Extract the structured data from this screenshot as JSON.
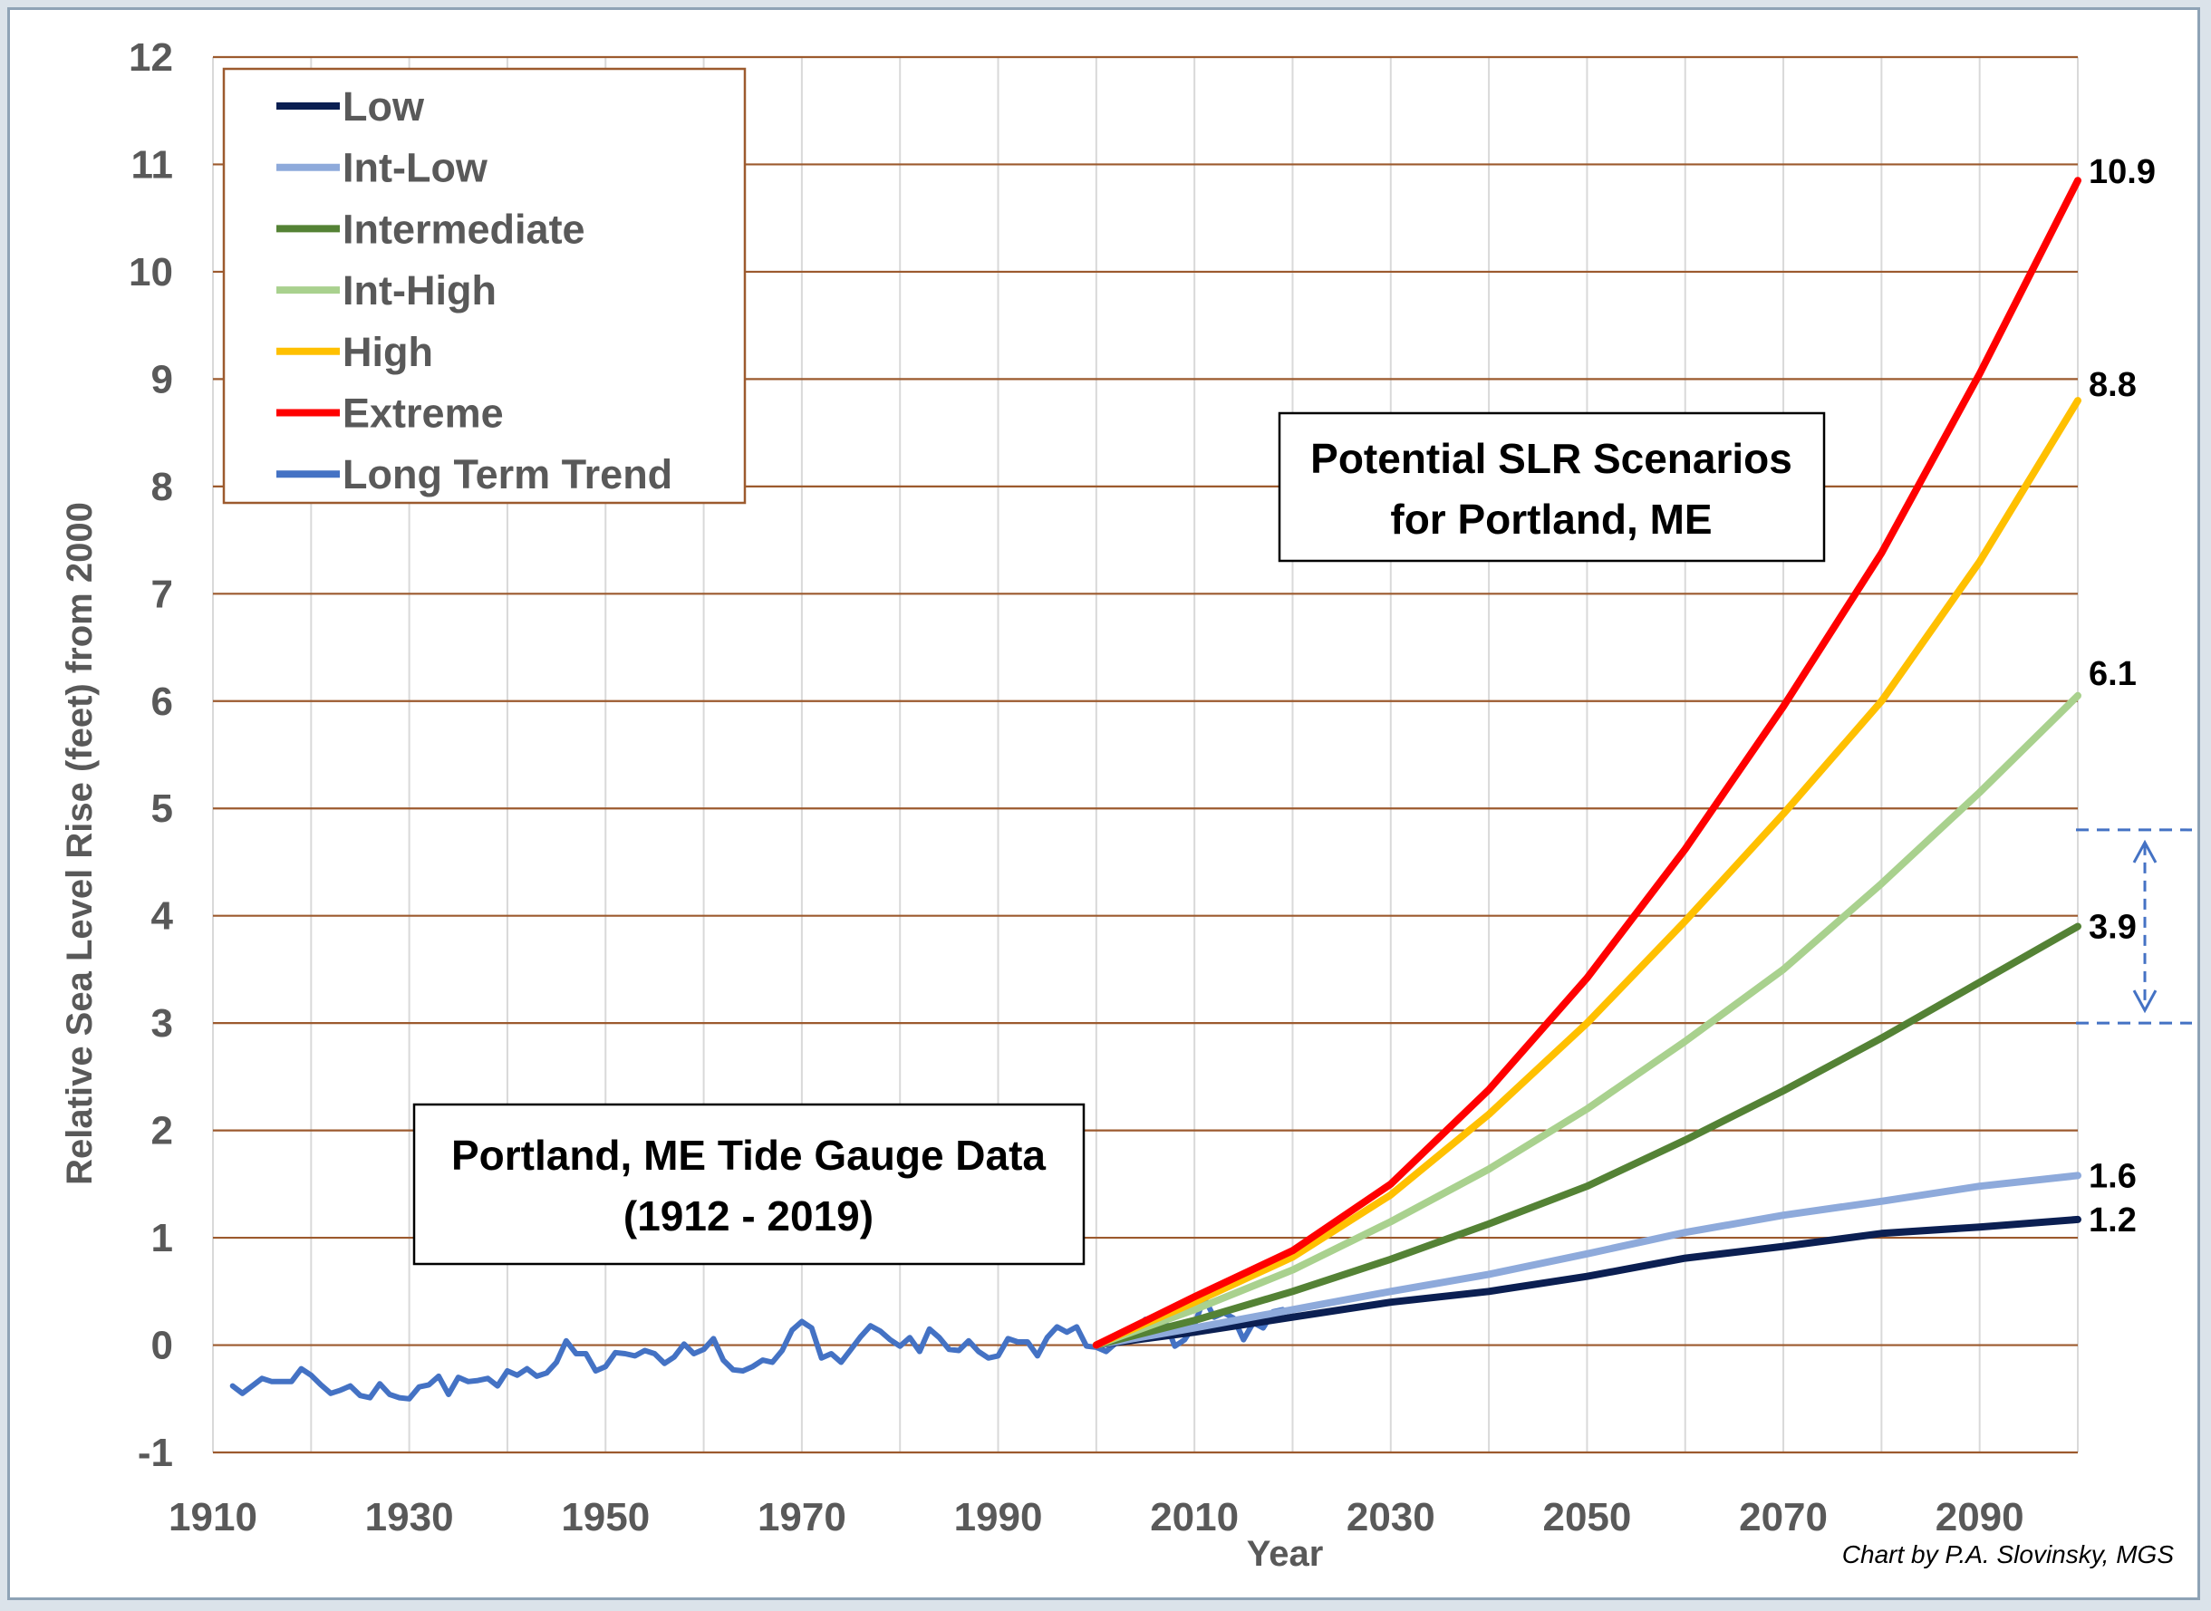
{
  "chart_data": {
    "type": "line",
    "title_box": {
      "line1": "Potential SLR Scenarios",
      "line2": "for Portland, ME"
    },
    "gauge_box": {
      "line1": "Portland, ME Tide Gauge Data",
      "line2": "(1912 - 2019)"
    },
    "xlabel": "Year",
    "ylabel": "Relative Sea Level Rise (feet) from 2000",
    "xlim": [
      1910,
      2100
    ],
    "ylim": [
      -1,
      12
    ],
    "x_ticks": [
      "1910",
      "1930",
      "1950",
      "1970",
      "1990",
      "2010",
      "2030",
      "2050",
      "2070",
      "2090"
    ],
    "y_ticks": [
      "-1",
      "0",
      "1",
      "2",
      "3",
      "4",
      "5",
      "6",
      "7",
      "8",
      "9",
      "10",
      "11",
      "12"
    ],
    "grid": "horizontal major (brown) and vertical minor (light gray)",
    "legend_position": "top-left",
    "credit": "Chart by P.A. Slovinsky, MGS",
    "end_labels": [
      {
        "text": "10.9",
        "series": "Extreme"
      },
      {
        "text": "8.8",
        "series": "High"
      },
      {
        "text": "6.1",
        "series": "Int-High"
      },
      {
        "text": "3.9",
        "series": "Intermediate"
      },
      {
        "text": "1.6",
        "series": "Int-Low"
      },
      {
        "text": "1.2",
        "series": "Low"
      }
    ],
    "range_marker": {
      "low": 3.0,
      "high": 4.8
    },
    "series": [
      {
        "name": "Low",
        "color": "#0b1f52",
        "x": [
          2000,
          2010,
          2020,
          2030,
          2040,
          2050,
          2060,
          2070,
          2080,
          2090,
          2100
        ],
        "values": [
          0,
          0.12,
          0.26,
          0.4,
          0.5,
          0.64,
          0.81,
          0.92,
          1.04,
          1.1,
          1.17
        ]
      },
      {
        "name": "Int-Low",
        "color": "#8eaadb",
        "x": [
          2000,
          2010,
          2020,
          2030,
          2040,
          2050,
          2060,
          2070,
          2080,
          2090,
          2100
        ],
        "values": [
          0,
          0.16,
          0.33,
          0.5,
          0.66,
          0.85,
          1.05,
          1.21,
          1.34,
          1.48,
          1.58
        ]
      },
      {
        "name": "Intermediate",
        "color": "#548235",
        "x": [
          2000,
          2010,
          2020,
          2030,
          2040,
          2050,
          2060,
          2070,
          2080,
          2090,
          2100
        ],
        "values": [
          0,
          0.23,
          0.5,
          0.8,
          1.13,
          1.48,
          1.91,
          2.37,
          2.86,
          3.38,
          3.9
        ]
      },
      {
        "name": "Int-High",
        "color": "#a9d18e",
        "x": [
          2000,
          2010,
          2020,
          2030,
          2040,
          2050,
          2060,
          2070,
          2080,
          2090,
          2100
        ],
        "values": [
          0,
          0.33,
          0.7,
          1.15,
          1.64,
          2.2,
          2.83,
          3.5,
          4.3,
          5.15,
          6.05
        ]
      },
      {
        "name": "High",
        "color": "#ffc000",
        "x": [
          2000,
          2010,
          2020,
          2030,
          2040,
          2050,
          2060,
          2070,
          2080,
          2090,
          2100
        ],
        "values": [
          0,
          0.4,
          0.82,
          1.4,
          2.15,
          3.0,
          3.95,
          4.95,
          6.0,
          7.3,
          8.8
        ]
      },
      {
        "name": "Extreme",
        "color": "#ff0000",
        "x": [
          2000,
          2010,
          2020,
          2030,
          2040,
          2050,
          2060,
          2070,
          2080,
          2090,
          2100
        ],
        "values": [
          0,
          0.45,
          0.88,
          1.5,
          2.38,
          3.42,
          4.62,
          5.95,
          7.38,
          9.05,
          10.85
        ]
      },
      {
        "name": "Long Term Trend",
        "color": "#4472c4",
        "x": [
          1912,
          1913,
          1914,
          1915,
          1916,
          1917,
          1918,
          1919,
          1920,
          1921,
          1922,
          1923,
          1924,
          1925,
          1926,
          1927,
          1928,
          1929,
          1930,
          1931,
          1932,
          1933,
          1934,
          1935,
          1936,
          1937,
          1938,
          1939,
          1940,
          1941,
          1942,
          1943,
          1944,
          1945,
          1946,
          1947,
          1948,
          1949,
          1950,
          1951,
          1952,
          1953,
          1954,
          1955,
          1956,
          1957,
          1958,
          1959,
          1960,
          1961,
          1962,
          1963,
          1964,
          1965,
          1966,
          1967,
          1968,
          1969,
          1970,
          1971,
          1972,
          1973,
          1974,
          1975,
          1976,
          1977,
          1978,
          1979,
          1980,
          1981,
          1982,
          1983,
          1984,
          1985,
          1986,
          1987,
          1988,
          1989,
          1990,
          1991,
          1992,
          1993,
          1994,
          1995,
          1996,
          1997,
          1998,
          1999,
          2000,
          2001,
          2002,
          2003,
          2004,
          2005,
          2006,
          2007,
          2008,
          2009,
          2010,
          2011,
          2012,
          2013,
          2014,
          2015,
          2016,
          2017,
          2018,
          2019
        ],
        "values": [
          -0.38,
          -0.45,
          -0.38,
          -0.31,
          -0.34,
          -0.34,
          -0.34,
          -0.22,
          -0.28,
          -0.37,
          -0.45,
          -0.42,
          -0.38,
          -0.47,
          -0.49,
          -0.36,
          -0.46,
          -0.49,
          -0.5,
          -0.39,
          -0.37,
          -0.29,
          -0.46,
          -0.3,
          -0.34,
          -0.33,
          -0.31,
          -0.38,
          -0.24,
          -0.28,
          -0.22,
          -0.29,
          -0.26,
          -0.16,
          0.04,
          -0.08,
          -0.08,
          -0.24,
          -0.2,
          -0.07,
          -0.08,
          -0.1,
          -0.05,
          -0.08,
          -0.17,
          -0.11,
          0.01,
          -0.08,
          -0.04,
          0.06,
          -0.14,
          -0.23,
          -0.24,
          -0.2,
          -0.14,
          -0.16,
          -0.05,
          0.14,
          0.22,
          0.16,
          -0.12,
          -0.08,
          -0.16,
          -0.04,
          0.08,
          0.18,
          0.13,
          0.05,
          -0.01,
          0.07,
          -0.06,
          0.15,
          0.07,
          -0.04,
          -0.05,
          0.04,
          -0.06,
          -0.12,
          -0.1,
          0.06,
          0.03,
          0.03,
          -0.1,
          0.07,
          0.17,
          0.12,
          0.17,
          -0.01,
          -0.02,
          -0.06,
          0.02,
          0.04,
          0.08,
          0.24,
          0.08,
          0.22,
          -0.01,
          0.05,
          0.19,
          0.44,
          0.26,
          0.3,
          0.25,
          0.05,
          0.21,
          0.16,
          0.31,
          0.33
        ]
      }
    ]
  }
}
